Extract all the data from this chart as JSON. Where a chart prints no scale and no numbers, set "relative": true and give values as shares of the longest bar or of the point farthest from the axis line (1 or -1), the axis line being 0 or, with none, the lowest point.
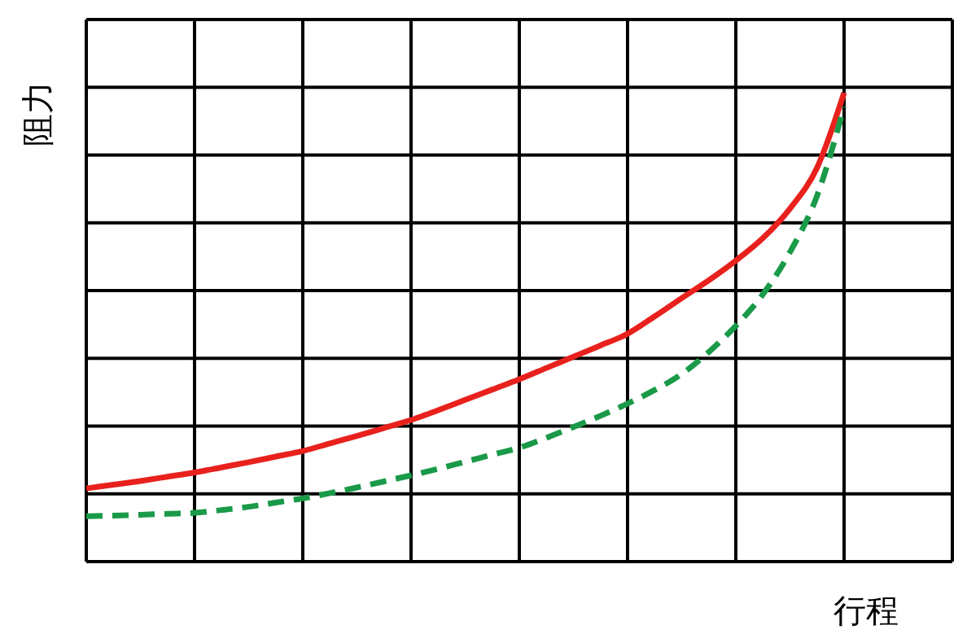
{
  "chart_data": {
    "type": "line",
    "relative": true,
    "xlabel": "行程",
    "ylabel": "阻力",
    "grid": true,
    "categories": [
      null,
      null,
      null,
      null,
      null,
      null,
      null,
      null,
      null,
      null,
      null,
      null,
      null,
      null,
      null,
      null,
      null,
      null,
      null,
      null,
      null,
      null,
      null,
      null,
      null,
      null,
      null,
      null,
      null,
      null,
      null,
      null,
      null
    ],
    "series": [
      {
        "color": "#e8211d",
        "line_style": "solid",
        "values": [
          0.156,
          0.164,
          0.172,
          0.181,
          0.19,
          0.201,
          0.212,
          0.224,
          0.236,
          0.252,
          0.268,
          0.285,
          0.302,
          0.323,
          0.345,
          0.367,
          0.389,
          0.413,
          0.437,
          0.461,
          0.486,
          0.523,
          0.562,
          0.6,
          0.642,
          0.69,
          0.753,
          0.84,
          1,
          null,
          null,
          null,
          null
        ]
      },
      {
        "color": "#1a9a48",
        "line_style": "dashed",
        "values": [
          0.097,
          0.098,
          0.1,
          0.102,
          0.104,
          0.11,
          0.117,
          0.126,
          0.135,
          0.146,
          0.158,
          0.171,
          0.184,
          0.198,
          0.213,
          0.228,
          0.243,
          0.264,
          0.287,
          0.311,
          0.337,
          0.366,
          0.4,
          0.447,
          0.503,
          0.57,
          0.66,
          0.78,
          0.97,
          null,
          null,
          null,
          null
        ]
      }
    ]
  }
}
